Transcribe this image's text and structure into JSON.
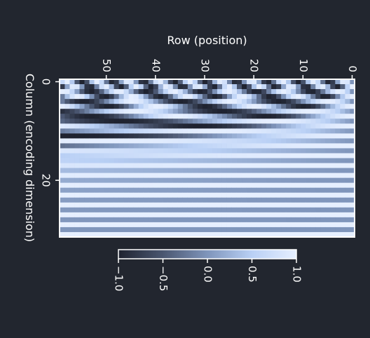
{
  "chart_data": {
    "type": "heatmap",
    "title": "",
    "xlabel": "Row (position)",
    "ylabel": "Column (encoding dimension)",
    "x": {
      "range": [
        0,
        59
      ],
      "reversed": true,
      "ticks": [
        0,
        10,
        20,
        30,
        40,
        50
      ]
    },
    "y": {
      "range": [
        0,
        31
      ],
      "ticks": [
        0,
        20
      ]
    },
    "values": {
      "description_of_formula": "value(pos, dim) = sin/cos(pos / 10000^(2*floor(dim/2)/32)); even dims use sin, odd dims use cos",
      "n_positions": 60,
      "n_dims": 32,
      "d_model": 32,
      "base": 10000
    },
    "colorbar": {
      "min": -1.0,
      "max": 1.0,
      "ticks": [
        "−1.0",
        "−0.5",
        "0.0",
        "0.5",
        "1.0"
      ],
      "colormap": [
        "#1f2330",
        "#4a5670",
        "#7f95bb",
        "#b9d0f5",
        "#e6efff"
      ]
    },
    "colors": {
      "background": "#22262f",
      "frame": "#ffffff",
      "text": "#ffffff"
    },
    "grid": false
  }
}
